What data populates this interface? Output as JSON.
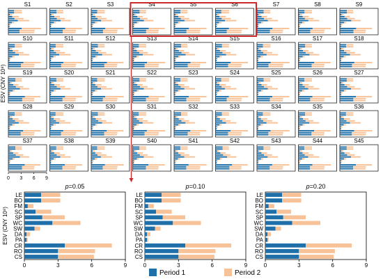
{
  "colors": {
    "period1": "#1f6fa8",
    "period2": "#f7c298",
    "highlight": "#cc2a2a",
    "axis": "#000000"
  },
  "small_multiples": {
    "labels": [
      "S1",
      "S2",
      "S3",
      "S4",
      "S5",
      "S6",
      "S7",
      "S8",
      "S9",
      "S10",
      "S11",
      "S12",
      "S13",
      "S14",
      "S15",
      "S16",
      "S17",
      "S18",
      "S19",
      "S20",
      "S21",
      "S22",
      "S23",
      "S24",
      "S25",
      "S26",
      "S27",
      "S28",
      "S29",
      "S30",
      "S31",
      "S32",
      "S33",
      "S34",
      "S35",
      "S36",
      "S37",
      "S38",
      "S39",
      "S40",
      "S41",
      "S42",
      "S43",
      "S44",
      "S45"
    ],
    "y_axis_label": "ESV (CNY 10⁸)",
    "x_ticks": [
      "0",
      "3",
      "6",
      "9"
    ],
    "highlighted": [
      "S4",
      "S5",
      "S6"
    ]
  },
  "chart_data": [
    {
      "type": "bar",
      "subtype": "horizontal-stacked",
      "title": "p=0.05",
      "categories": [
        "LE",
        "BO",
        "FM",
        "SC",
        "SP",
        "WC",
        "SW",
        "DA",
        "PA",
        "CR",
        "RO",
        "CS"
      ],
      "series": [
        {
          "name": "Period 1",
          "values": [
            1.5,
            1.5,
            0.3,
            1.0,
            1.6,
            2.5,
            0.9,
            0.2,
            0.2,
            3.6,
            3.0,
            3.0
          ]
        },
        {
          "name": "Period 2",
          "values": [
            1.7,
            1.7,
            0.5,
            1.4,
            2.0,
            2.5,
            0.5,
            0.3,
            0.1,
            4.2,
            3.3,
            3.2
          ]
        }
      ],
      "xlim": [
        0,
        9
      ],
      "x_ticks": [
        0,
        3,
        6,
        9
      ],
      "ylabel": "ESV (CNY 10⁸)",
      "xlabel": ""
    },
    {
      "type": "bar",
      "subtype": "horizontal-stacked",
      "title": "p=0.10",
      "categories": [
        "LE",
        "BO",
        "FM",
        "SC",
        "SP",
        "WC",
        "SW",
        "DA",
        "PA",
        "CR",
        "RO",
        "CS"
      ],
      "series": [
        {
          "name": "Period 1",
          "values": [
            1.5,
            1.5,
            0.3,
            1.0,
            1.6,
            2.5,
            0.9,
            0.2,
            0.2,
            3.6,
            3.0,
            3.0
          ]
        },
        {
          "name": "Period 2",
          "values": [
            1.7,
            1.7,
            0.5,
            1.4,
            2.0,
            2.5,
            0.5,
            0.3,
            0.1,
            4.1,
            3.3,
            3.2
          ]
        }
      ],
      "xlim": [
        0,
        9
      ],
      "x_ticks": [
        0,
        3,
        6,
        9
      ],
      "ylabel": "",
      "xlabel": ""
    },
    {
      "type": "bar",
      "subtype": "horizontal-stacked",
      "title": "p=0.20",
      "categories": [
        "LE",
        "BO",
        "FM",
        "SC",
        "SP",
        "WC",
        "SW",
        "DA",
        "PA",
        "CR",
        "RO",
        "CS"
      ],
      "series": [
        {
          "name": "Period 1",
          "values": [
            1.5,
            1.5,
            0.3,
            1.0,
            1.6,
            2.4,
            0.9,
            0.2,
            0.2,
            3.6,
            3.0,
            3.0
          ]
        },
        {
          "name": "Period 2",
          "values": [
            1.7,
            1.7,
            0.5,
            1.3,
            2.0,
            2.5,
            0.5,
            0.3,
            0.1,
            4.1,
            3.2,
            3.1
          ]
        }
      ],
      "xlim": [
        0,
        9
      ],
      "x_ticks": [
        0,
        3,
        6,
        9
      ],
      "ylabel": "",
      "xlabel": ""
    }
  ],
  "legend": {
    "items": [
      {
        "name": "Period 1",
        "color": "#1f6fa8"
      },
      {
        "name": "Period 2",
        "color": "#f7c298"
      }
    ],
    "placement": "bottom"
  }
}
